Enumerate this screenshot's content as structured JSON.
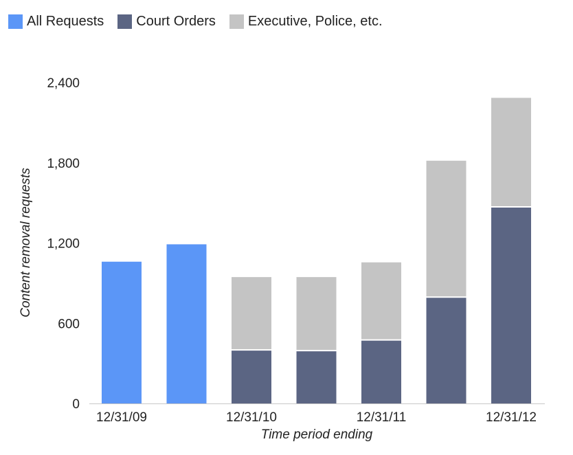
{
  "chart_data": {
    "type": "bar",
    "stacked": true,
    "categories": [
      "12/31/09",
      "",
      "12/31/10",
      "",
      "12/31/11",
      "",
      "12/31/12"
    ],
    "series": [
      {
        "name": "All Requests",
        "color": "#5b96f7",
        "values": [
          1060,
          1190,
          0,
          0,
          0,
          0,
          0
        ]
      },
      {
        "name": "Court Orders",
        "color": "#5b6583",
        "values": [
          0,
          0,
          400,
          395,
          475,
          795,
          1470
        ]
      },
      {
        "name": "Executive, Police, etc.",
        "color": "#c4c4c4",
        "values": [
          0,
          0,
          545,
          550,
          580,
          1020,
          815
        ]
      }
    ],
    "xlabel": "Time period ending",
    "ylabel": "Content removal requests",
    "ylim": [
      0,
      2400
    ],
    "yticks": [
      0,
      600,
      1200,
      1800,
      2400
    ],
    "ytick_labels": [
      "0",
      "600",
      "1,200",
      "1,800",
      "2,400"
    ],
    "grid": false,
    "legend_position": "top-left"
  }
}
